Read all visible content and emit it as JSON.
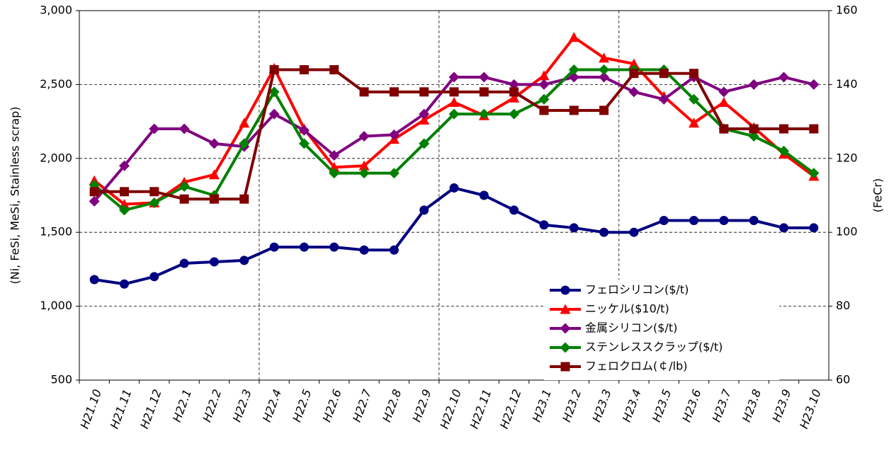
{
  "chart_data": {
    "type": "line",
    "y_label": "(Ni, FeSi, MeSi, Stainless scrap)",
    "y2_label": "(FeCr)",
    "categories": [
      "H21.10",
      "H21.11",
      "H21.12",
      "H22.1",
      "H22.2",
      "H22.3",
      "H22.4",
      "H22.5",
      "H22.6",
      "H22.7",
      "H22.8",
      "H22.9",
      "H22.10",
      "H22.11",
      "H22.12",
      "H23.1",
      "H23.2",
      "H23.3",
      "H23.4",
      "H23.5",
      "H23.6",
      "H23.7",
      "H23.8",
      "H23.9",
      "H23.10"
    ],
    "ylim": [
      500,
      3000
    ],
    "yticks": [
      500,
      {
        "value": 1000,
        "label": "1,000"
      },
      {
        "value": 1500,
        "label": "1,500"
      },
      {
        "value": 2000,
        "label": "2,000"
      },
      {
        "value": 2500,
        "label": "2,500"
      },
      {
        "value": 3000,
        "label": "3,000"
      }
    ],
    "y2lim": [
      60,
      160
    ],
    "y2ticks": [
      60,
      80,
      100,
      120,
      140,
      160
    ],
    "grid": true,
    "legend": "lower right",
    "series": [
      {
        "name": "フェロシリコン($/t)",
        "color": "#000080",
        "marker": "circle",
        "values": [
          1180,
          1150,
          1200,
          1290,
          1300,
          1310,
          1400,
          1400,
          1400,
          1380,
          1380,
          1650,
          1800,
          1750,
          1650,
          1550,
          1530,
          1500,
          1500,
          1580,
          1580,
          1580,
          1580,
          1530,
          1530
        ]
      },
      {
        "name": "ニッケル($10/t)",
        "color": "#ff0000",
        "marker": "triangle",
        "values": [
          1850,
          1690,
          1700,
          1840,
          1890,
          2240,
          2610,
          2200,
          1940,
          1950,
          2130,
          2260,
          2380,
          2290,
          2410,
          2560,
          2820,
          2680,
          2640,
          2420,
          2240,
          2380,
          2210,
          2030,
          1880
        ]
      },
      {
        "name": "金属シリコン($/t)",
        "color": "#800080",
        "marker": "diamond",
        "values": [
          1710,
          1950,
          2200,
          2200,
          2100,
          2080,
          2300,
          2190,
          2020,
          2150,
          2160,
          2300,
          2550,
          2550,
          2500,
          2500,
          2550,
          2550,
          2450,
          2400,
          2550,
          2450,
          2500,
          2550,
          2500
        ]
      },
      {
        "name": "ステンレススクラップ($/t)",
        "color": "#008000",
        "marker": "diamond",
        "values": [
          1820,
          1650,
          1700,
          1810,
          1750,
          2100,
          2450,
          2100,
          1900,
          1900,
          1900,
          2100,
          2300,
          2300,
          2300,
          2400,
          2600,
          2600,
          2600,
          2600,
          2400,
          2200,
          2150,
          2050,
          1900
        ]
      },
      {
        "name": "フェロクロム(￠/lb)",
        "color": "#800000",
        "marker": "square",
        "axis": "y2",
        "values": [
          111,
          111,
          111,
          109,
          109,
          109,
          144,
          144,
          144,
          138,
          138,
          138,
          138,
          138,
          138,
          133,
          133,
          133,
          143,
          143,
          143,
          128,
          128,
          128,
          128
        ]
      }
    ]
  }
}
